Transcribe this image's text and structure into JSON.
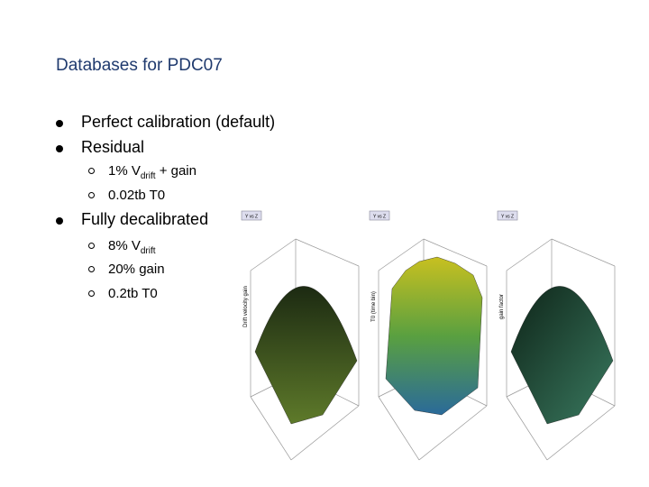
{
  "title": "Databases for PDC07",
  "bullets": [
    {
      "text": "Perfect calibration (default)",
      "items": []
    },
    {
      "text": "Residual",
      "items": [
        {
          "prefix": "1% V",
          "sub": "drift",
          "suffix": " + gain"
        },
        {
          "prefix": "0.02tb T0"
        }
      ]
    },
    {
      "text": "Fully decalibrated",
      "items": [
        {
          "prefix": "8% V",
          "sub": "drift"
        },
        {
          "prefix": "20% gain"
        },
        {
          "prefix": "0.2tb T0"
        }
      ]
    }
  ],
  "plots": [
    {
      "tag": "Y vs Z",
      "axis_label": "Drift velocity gain"
    },
    {
      "tag": "Y vs Z",
      "axis_label": "T0 (time bin)"
    },
    {
      "tag": "Y vs Z",
      "axis_label": "gain factor"
    }
  ]
}
